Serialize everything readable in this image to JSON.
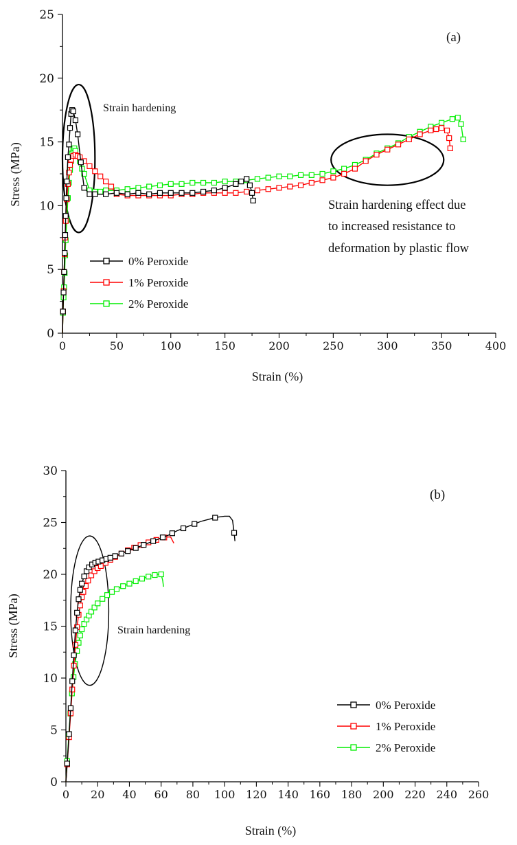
{
  "chart_data": [
    {
      "type": "line",
      "panel_label": "(a)",
      "xlabel": "Strain (%)",
      "ylabel": "Stress (MPa)",
      "xlim": [
        0,
        400
      ],
      "ylim": [
        0,
        25
      ],
      "xticks": [
        0,
        50,
        100,
        150,
        200,
        250,
        300,
        350,
        400
      ],
      "yticks": [
        0,
        5,
        10,
        15,
        20,
        25
      ],
      "grid": false,
      "legend_position": "bottom-left",
      "annotations": [
        {
          "text": "Strain hardening",
          "ellipse_center": [
            15,
            13.7
          ],
          "ellipse_radius": [
            15,
            5.8
          ]
        },
        {
          "text": "Strain hardening effect due to increased resistance to deformation by plastic flow",
          "lines": [
            "Strain hardening effect due",
            "to increased resistance to",
            "deformation by plastic flow"
          ],
          "ellipse_center": [
            300,
            13.6
          ],
          "ellipse_radius": [
            52,
            2
          ]
        }
      ],
      "series": [
        {
          "name": "0% Peroxide",
          "color": "#000000",
          "x": [
            0,
            0.5,
            1,
            1.5,
            2,
            2.5,
            3,
            3.5,
            4,
            5,
            6,
            7,
            8,
            9,
            10,
            12,
            14,
            17,
            20,
            25,
            30,
            40,
            50,
            60,
            70,
            80,
            90,
            100,
            110,
            120,
            130,
            140,
            150,
            160,
            165,
            170,
            173,
            175,
            176
          ],
          "y": [
            0,
            1.7,
            3.2,
            4.8,
            6.3,
            7.7,
            9.2,
            10.6,
            11.9,
            13.8,
            14.8,
            16.1,
            17.2,
            17.5,
            17.4,
            16.7,
            15.6,
            13.4,
            11.4,
            10.9,
            10.9,
            10.9,
            11.0,
            10.9,
            11.0,
            10.9,
            11.0,
            11.0,
            11.0,
            11.0,
            11.1,
            11.2,
            11.4,
            11.7,
            11.9,
            12.1,
            11.6,
            11.0,
            10.4
          ],
          "markers_every": 1
        },
        {
          "name": "1% Peroxide",
          "color": "#ff0000",
          "x": [
            0,
            0.5,
            1,
            1.5,
            2,
            2.5,
            3,
            4,
            5,
            6,
            7,
            8,
            10,
            12,
            14,
            16,
            20,
            25,
            30,
            35,
            40,
            45,
            50,
            60,
            70,
            80,
            90,
            100,
            110,
            120,
            130,
            140,
            150,
            160,
            170,
            180,
            190,
            200,
            210,
            220,
            230,
            240,
            250,
            260,
            270,
            280,
            290,
            300,
            310,
            320,
            330,
            340,
            345,
            350,
            355,
            357,
            358
          ],
          "y": [
            0,
            1.7,
            3.3,
            4.8,
            6.2,
            7.5,
            8.8,
            10.5,
            11.7,
            12.6,
            13.2,
            13.6,
            13.9,
            14.0,
            13.9,
            13.8,
            13.5,
            13.1,
            12.7,
            12.3,
            11.9,
            11.5,
            10.9,
            10.8,
            10.8,
            10.8,
            10.8,
            10.8,
            10.9,
            10.9,
            11.0,
            11.0,
            11.0,
            11.0,
            11.1,
            11.2,
            11.3,
            11.4,
            11.5,
            11.6,
            11.8,
            12.0,
            12.2,
            12.5,
            12.9,
            13.5,
            14.0,
            14.4,
            14.8,
            15.2,
            15.6,
            15.9,
            16.0,
            16.1,
            15.9,
            15.3,
            14.5
          ],
          "markers_every": 1
        },
        {
          "name": "2% Peroxide",
          "color": "#00ee00",
          "x": [
            0,
            0.5,
            1,
            1.5,
            2,
            2.5,
            3,
            4,
            5,
            6,
            7,
            8,
            9,
            10,
            11,
            12,
            14,
            16,
            18,
            20,
            25,
            30,
            35,
            40,
            50,
            60,
            70,
            80,
            90,
            100,
            110,
            120,
            130,
            140,
            150,
            160,
            170,
            180,
            190,
            200,
            210,
            220,
            230,
            240,
            250,
            260,
            270,
            280,
            290,
            300,
            310,
            320,
            330,
            340,
            350,
            360,
            365,
            368,
            370
          ],
          "y": [
            0,
            1.6,
            2.8,
            3.6,
            4.7,
            6.1,
            7.3,
            8.9,
            10.6,
            11.8,
            12.8,
            13.5,
            14.1,
            14.4,
            14.5,
            14.3,
            13.9,
            13.5,
            12.9,
            12.5,
            11.2,
            11.1,
            11.1,
            11.2,
            11.2,
            11.3,
            11.4,
            11.5,
            11.6,
            11.7,
            11.7,
            11.8,
            11.8,
            11.8,
            11.9,
            11.9,
            12.0,
            12.1,
            12.2,
            12.3,
            12.3,
            12.4,
            12.4,
            12.5,
            12.7,
            12.9,
            13.2,
            13.6,
            14.1,
            14.5,
            14.9,
            15.4,
            15.8,
            16.2,
            16.5,
            16.8,
            16.9,
            16.4,
            15.2
          ],
          "markers_every": 1
        }
      ]
    },
    {
      "type": "line",
      "panel_label": "(b)",
      "xlabel": "Strain (%)",
      "ylabel": "Stress (MPa)",
      "xlim": [
        0,
        260
      ],
      "ylim": [
        0,
        30
      ],
      "xticks": [
        0,
        20,
        40,
        60,
        80,
        100,
        120,
        140,
        160,
        180,
        200,
        220,
        240,
        260
      ],
      "yticks": [
        0,
        5,
        10,
        15,
        20,
        25,
        30
      ],
      "grid": false,
      "legend_position": "bottom-right",
      "annotations": [
        {
          "text": "Strain hardening",
          "ellipse_center": [
            15,
            16.5
          ],
          "ellipse_radius": [
            12,
            7.2
          ]
        }
      ],
      "series": [
        {
          "name": "0% Peroxide",
          "color": "#000000",
          "x": [
            0,
            1,
            2,
            3,
            4,
            5,
            6,
            7,
            8,
            9,
            10,
            11,
            12,
            13,
            14,
            16,
            18,
            20,
            22,
            24,
            26,
            28,
            30,
            35,
            40,
            45,
            50,
            55,
            60,
            65,
            70,
            75,
            80,
            85,
            90,
            95,
            100,
            103,
            105,
            106,
            106.5
          ],
          "y": [
            0,
            2.2,
            4.6,
            7.1,
            9.7,
            12.2,
            14.6,
            16.3,
            17.6,
            18.5,
            19.1,
            19.6,
            20.0,
            20.3,
            20.6,
            20.9,
            21.1,
            21.2,
            21.3,
            21.4,
            21.5,
            21.6,
            21.7,
            22.0,
            22.3,
            22.6,
            22.9,
            23.2,
            23.5,
            23.8,
            24.2,
            24.5,
            24.8,
            25.1,
            25.3,
            25.5,
            25.6,
            25.6,
            25.2,
            24.0,
            23.2
          ],
          "markers": [
            0.8,
            2,
            3,
            4,
            5,
            6,
            7,
            8,
            9,
            10,
            11.5,
            13,
            14.5,
            16.5,
            18.5,
            20.5,
            23,
            25.5,
            28,
            31,
            35,
            39,
            44,
            49,
            55,
            61,
            67,
            74,
            81,
            94,
            106
          ]
        },
        {
          "name": "1% Peroxide",
          "color": "#ff0000",
          "x": [
            0,
            1,
            2,
            3,
            4,
            5,
            6,
            7,
            8,
            9,
            10,
            11,
            12,
            14,
            16,
            18,
            20,
            22,
            24,
            26,
            28,
            30,
            35,
            40,
            45,
            50,
            55,
            60,
            64,
            66,
            67,
            68
          ],
          "y": [
            0,
            2.1,
            4.3,
            6.6,
            8.9,
            11.2,
            13.2,
            14.9,
            16.1,
            17.0,
            17.8,
            18.3,
            18.7,
            19.4,
            19.9,
            20.3,
            20.6,
            20.8,
            21.0,
            21.2,
            21.4,
            21.6,
            22.0,
            22.4,
            22.7,
            23.0,
            23.2,
            23.5,
            23.6,
            23.6,
            23.3,
            23.0
          ],
          "markers": [
            0.8,
            2,
            3,
            4,
            5,
            6,
            7,
            8,
            9,
            10,
            11,
            12.5,
            14,
            16,
            18,
            20,
            22,
            25,
            28,
            31,
            35,
            39,
            43,
            47,
            52,
            57,
            62
          ]
        },
        {
          "name": "2% Peroxide",
          "color": "#00ee00",
          "x": [
            0,
            1,
            2,
            3,
            4,
            5,
            6,
            7,
            8,
            9,
            10,
            12,
            14,
            16,
            18,
            20,
            22,
            25,
            28,
            31,
            35,
            40,
            45,
            50,
            55,
            58,
            60,
            61,
            61.5
          ],
          "y": [
            0,
            2.5,
            4.9,
            7.0,
            8.9,
            10.4,
            11.6,
            12.6,
            13.4,
            14.1,
            14.7,
            15.4,
            15.9,
            16.4,
            16.8,
            17.2,
            17.5,
            17.9,
            18.2,
            18.5,
            18.8,
            19.1,
            19.4,
            19.7,
            19.9,
            20.0,
            20.0,
            19.4,
            18.8
          ],
          "markers": [
            0.8,
            1.8,
            2.8,
            3.8,
            4.8,
            5.8,
            7,
            8,
            9,
            10,
            11.5,
            13,
            14.5,
            16,
            18,
            20,
            23,
            26,
            29,
            32,
            36,
            40,
            44,
            48,
            52,
            56,
            60
          ]
        }
      ]
    }
  ]
}
